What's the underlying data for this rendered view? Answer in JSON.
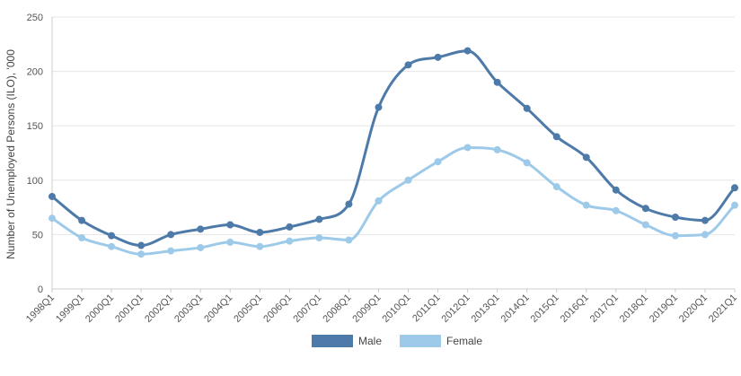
{
  "chart_data": {
    "type": "line",
    "title": "",
    "xlabel": "",
    "ylabel": "Number of Unemployed Persons (ILO), '000",
    "ylim": [
      0,
      250
    ],
    "yticks": [
      0,
      50,
      100,
      150,
      200,
      250
    ],
    "grid": true,
    "legend_position": "bottom-center",
    "categories": [
      "1998Q1",
      "1999Q1",
      "2000Q1",
      "2001Q1",
      "2002Q1",
      "2003Q1",
      "2004Q1",
      "2005Q1",
      "2006Q1",
      "2007Q1",
      "2008Q1",
      "2009Q1",
      "2010Q1",
      "2011Q1",
      "2012Q1",
      "2013Q1",
      "2014Q1",
      "2015Q1",
      "2016Q1",
      "2017Q1",
      "2018Q1",
      "2019Q1",
      "2020Q1",
      "2021Q1"
    ],
    "series": [
      {
        "name": "Male",
        "color": "#4d7aa8",
        "values": [
          85,
          63,
          49,
          40,
          50,
          55,
          59,
          52,
          57,
          64,
          78,
          167,
          206,
          213,
          219,
          190,
          166,
          140,
          121,
          91,
          74,
          66,
          63,
          93
        ]
      },
      {
        "name": "Female",
        "color": "#9ecae9",
        "values": [
          65,
          47,
          39,
          32,
          35,
          38,
          43,
          39,
          44,
          47,
          45,
          81,
          100,
          117,
          130,
          128,
          116,
          94,
          77,
          72,
          59,
          49,
          50,
          77
        ]
      }
    ]
  }
}
